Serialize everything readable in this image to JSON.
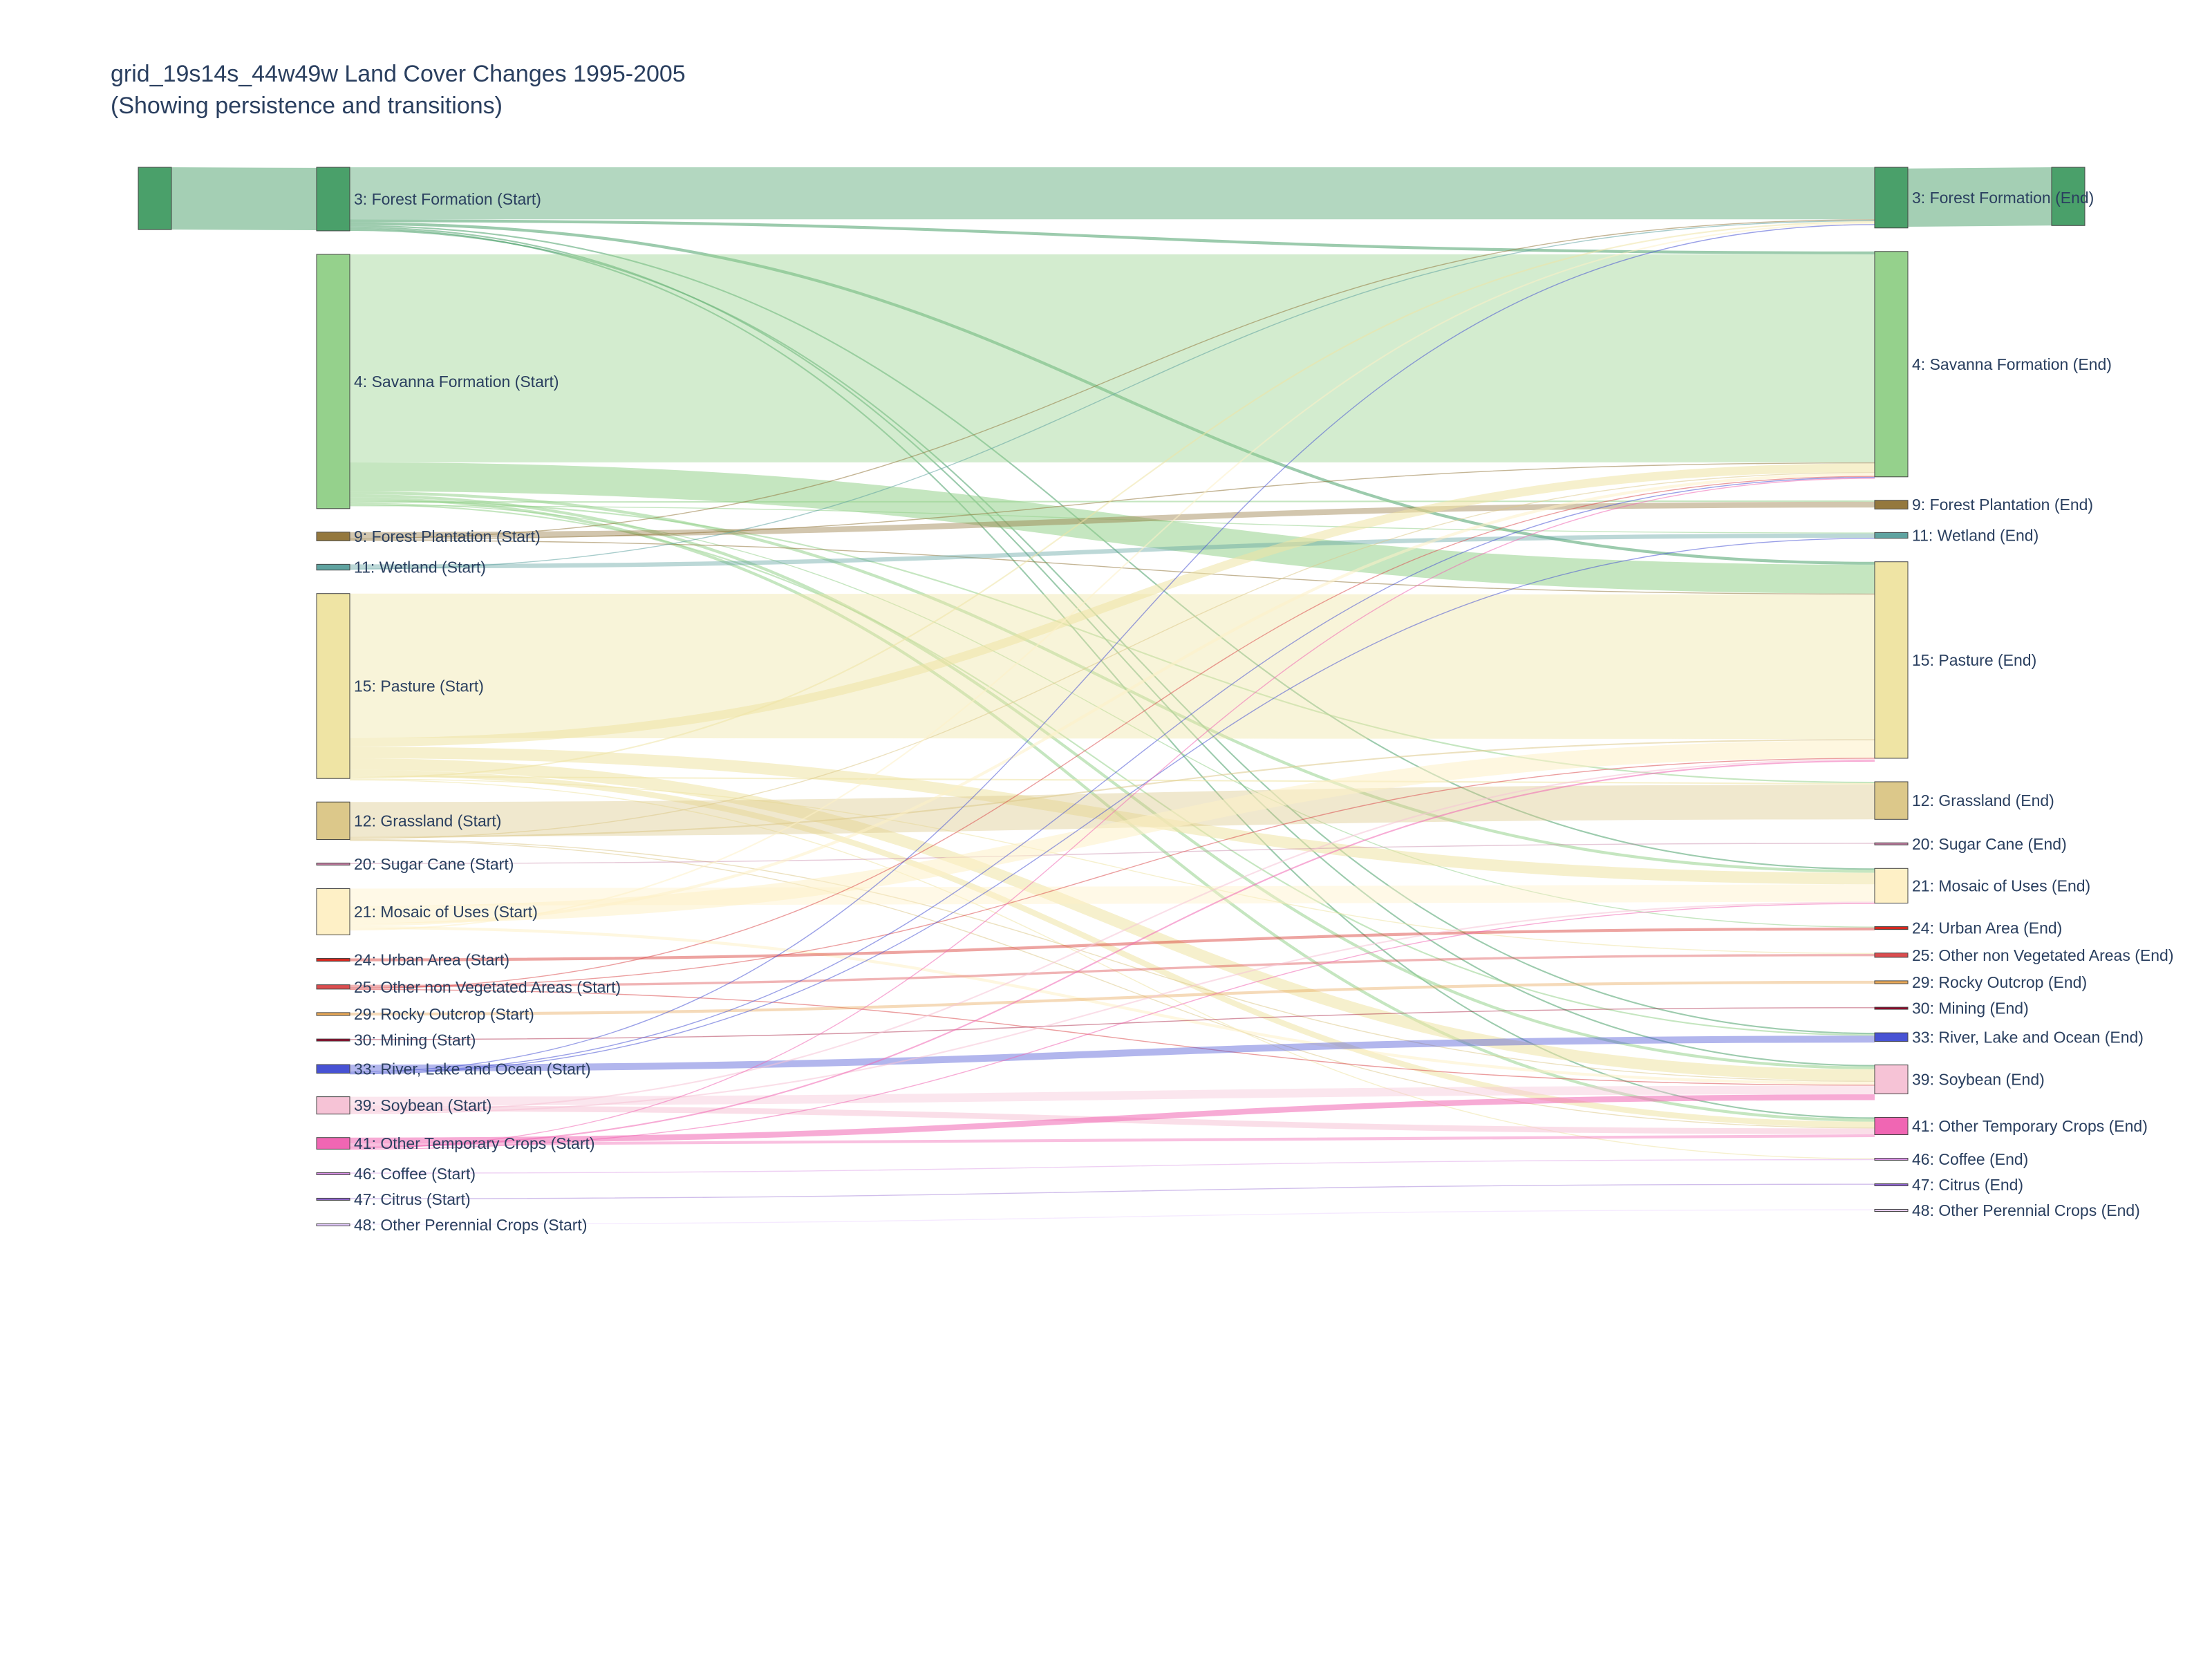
{
  "title": "grid_19s14s_44w49w Land Cover Changes 1995-2005",
  "subtitle": "(Showing persistence and transitions)",
  "chart_data": {
    "type": "sankey",
    "period": "1995-2005",
    "nodes": {
      "start": [
        {
          "id": "s3",
          "label": "3: Forest Formation (Start)",
          "color": "#4aa06a",
          "value": 22
        },
        {
          "id": "s4",
          "label": "4: Savanna Formation (Start)",
          "color": "#95d18c",
          "value": 88
        },
        {
          "id": "s9",
          "label": "9: Forest Plantation (Start)",
          "color": "#94783e",
          "value": 3
        },
        {
          "id": "s11",
          "label": "11: Wetland (Start)",
          "color": "#5fa3a0",
          "value": 2
        },
        {
          "id": "s15",
          "label": "15: Pasture (Start)",
          "color": "#efe4a4",
          "value": 64
        },
        {
          "id": "s12",
          "label": "12: Grassland (Start)",
          "color": "#dcc88a",
          "value": 13
        },
        {
          "id": "s20",
          "label": "20: Sugar Cane (Start)",
          "color": "#c27ba0",
          "value": 0.3
        },
        {
          "id": "s21",
          "label": "21: Mosaic of Uses (Start)",
          "color": "#fef0c6",
          "value": 16
        },
        {
          "id": "s24",
          "label": "24: Urban Area (Start)",
          "color": "#d4271e",
          "value": 1
        },
        {
          "id": "s25",
          "label": "25: Other non Vegetated Areas (Start)",
          "color": "#db4d4f",
          "value": 1.5
        },
        {
          "id": "s29",
          "label": "29: Rocky Outcrop (Start)",
          "color": "#e8a857",
          "value": 1
        },
        {
          "id": "s30",
          "label": "30: Mining (Start)",
          "color": "#9c0027",
          "value": 0.3
        },
        {
          "id": "s33",
          "label": "33: River, Lake and Ocean (Start)",
          "color": "#4752d4",
          "value": 3
        },
        {
          "id": "s39",
          "label": "39: Soybean (Start)",
          "color": "#f6c3d6",
          "value": 6
        },
        {
          "id": "s41",
          "label": "41: Other Temporary Crops (Start)",
          "color": "#f066b3",
          "value": 4
        },
        {
          "id": "s46",
          "label": "46: Coffee (Start)",
          "color": "#d68fe2",
          "value": 0.3
        },
        {
          "id": "s47",
          "label": "47: Citrus (Start)",
          "color": "#9065d0",
          "value": 0.3
        },
        {
          "id": "s48",
          "label": "48: Other Perennial Crops (Start)",
          "color": "#e6ccff",
          "value": 0.2
        }
      ],
      "end": [
        {
          "id": "e3",
          "label": "3: Forest Formation (End)",
          "color": "#4aa06a",
          "value": 21
        },
        {
          "id": "e4",
          "label": "4: Savanna Formation (End)",
          "color": "#95d18c",
          "value": 78
        },
        {
          "id": "e9",
          "label": "9: Forest Plantation (End)",
          "color": "#94783e",
          "value": 3
        },
        {
          "id": "e11",
          "label": "11: Wetland (End)",
          "color": "#5fa3a0",
          "value": 2
        },
        {
          "id": "e15",
          "label": "15: Pasture (End)",
          "color": "#efe4a4",
          "value": 68
        },
        {
          "id": "e12",
          "label": "12: Grassland (End)",
          "color": "#dcc88a",
          "value": 13
        },
        {
          "id": "e20",
          "label": "20: Sugar Cane (End)",
          "color": "#c27ba0",
          "value": 0.3
        },
        {
          "id": "e21",
          "label": "21: Mosaic of Uses (End)",
          "color": "#fef0c6",
          "value": 12
        },
        {
          "id": "e24",
          "label": "24: Urban Area (End)",
          "color": "#d4271e",
          "value": 1
        },
        {
          "id": "e25",
          "label": "25: Other non Vegetated Areas (End)",
          "color": "#db4d4f",
          "value": 1.5
        },
        {
          "id": "e29",
          "label": "29: Rocky Outcrop (End)",
          "color": "#e8a857",
          "value": 1
        },
        {
          "id": "e30",
          "label": "30: Mining (End)",
          "color": "#9c0027",
          "value": 0.3
        },
        {
          "id": "e33",
          "label": "33: River, Lake and Ocean (End)",
          "color": "#4752d4",
          "value": 3
        },
        {
          "id": "e39",
          "label": "39: Soybean (End)",
          "color": "#f6c3d6",
          "value": 10
        },
        {
          "id": "e41",
          "label": "41: Other Temporary Crops (End)",
          "color": "#f066b3",
          "value": 6
        },
        {
          "id": "e46",
          "label": "46: Coffee (End)",
          "color": "#d68fe2",
          "value": 0.3
        },
        {
          "id": "e47",
          "label": "47: Citrus (End)",
          "color": "#9065d0",
          "value": 0.3
        },
        {
          "id": "e48",
          "label": "48: Other Perennial Crops (End)",
          "color": "#e6ccff",
          "value": 0.2
        }
      ]
    },
    "links": [
      {
        "source": "s3",
        "target": "e3",
        "value": 18
      },
      {
        "source": "s3",
        "target": "e4",
        "value": 1
      },
      {
        "source": "s3",
        "target": "e15",
        "value": 1
      },
      {
        "source": "s3",
        "target": "e21",
        "value": 0.5
      },
      {
        "source": "s3",
        "target": "e39",
        "value": 0.5
      },
      {
        "source": "s3",
        "target": "e41",
        "value": 0.5
      },
      {
        "source": "s3",
        "target": "e33",
        "value": 0.5
      },
      {
        "source": "s4",
        "target": "e4",
        "value": 72
      },
      {
        "source": "s4",
        "target": "e15",
        "value": 10
      },
      {
        "source": "s4",
        "target": "e21",
        "value": 1
      },
      {
        "source": "s4",
        "target": "e39",
        "value": 1
      },
      {
        "source": "s4",
        "target": "e41",
        "value": 1
      },
      {
        "source": "s4",
        "target": "e12",
        "value": 0.5
      },
      {
        "source": "s4",
        "target": "e9",
        "value": 0.5
      },
      {
        "source": "s4",
        "target": "e24",
        "value": 0.3
      },
      {
        "source": "s4",
        "target": "e33",
        "value": 0.5
      },
      {
        "source": "s4",
        "target": "e11",
        "value": 0.3
      },
      {
        "source": "s9",
        "target": "e9",
        "value": 2
      },
      {
        "source": "s9",
        "target": "e3",
        "value": 0.3
      },
      {
        "source": "s9",
        "target": "e4",
        "value": 0.3
      },
      {
        "source": "s9",
        "target": "e15",
        "value": 0.3
      },
      {
        "source": "s11",
        "target": "e11",
        "value": 1.5
      },
      {
        "source": "s11",
        "target": "e3",
        "value": 0.3
      },
      {
        "source": "s15",
        "target": "e15",
        "value": 50
      },
      {
        "source": "s15",
        "target": "e4",
        "value": 3
      },
      {
        "source": "s15",
        "target": "e21",
        "value": 4
      },
      {
        "source": "s15",
        "target": "e39",
        "value": 4
      },
      {
        "source": "s15",
        "target": "e41",
        "value": 2
      },
      {
        "source": "s15",
        "target": "e12",
        "value": 0.5
      },
      {
        "source": "s15",
        "target": "e3",
        "value": 0.5
      },
      {
        "source": "s15",
        "target": "e25",
        "value": 0.3
      },
      {
        "source": "s15",
        "target": "e46",
        "value": 0.3
      },
      {
        "source": "s12",
        "target": "e12",
        "value": 12
      },
      {
        "source": "s12",
        "target": "e15",
        "value": 0.5
      },
      {
        "source": "s12",
        "target": "e4",
        "value": 0.3
      },
      {
        "source": "s12",
        "target": "e39",
        "value": 0.3
      },
      {
        "source": "s12",
        "target": "e41",
        "value": 0.3
      },
      {
        "source": "s20",
        "target": "e20",
        "value": 0.3
      },
      {
        "source": "s21",
        "target": "e21",
        "value": 6
      },
      {
        "source": "s21",
        "target": "e15",
        "value": 6
      },
      {
        "source": "s21",
        "target": "e4",
        "value": 1
      },
      {
        "source": "s21",
        "target": "e39",
        "value": 1
      },
      {
        "source": "s21",
        "target": "e3",
        "value": 0.5
      },
      {
        "source": "s24",
        "target": "e24",
        "value": 1
      },
      {
        "source": "s25",
        "target": "e25",
        "value": 0.8
      },
      {
        "source": "s25",
        "target": "e15",
        "value": 0.3
      },
      {
        "source": "s25",
        "target": "e4",
        "value": 0.2
      },
      {
        "source": "s25",
        "target": "e39",
        "value": 0.2
      },
      {
        "source": "s29",
        "target": "e29",
        "value": 1
      },
      {
        "source": "s30",
        "target": "e30",
        "value": 0.3
      },
      {
        "source": "s33",
        "target": "e33",
        "value": 2.4
      },
      {
        "source": "s33",
        "target": "e3",
        "value": 0.2
      },
      {
        "source": "s33",
        "target": "e4",
        "value": 0.2
      },
      {
        "source": "s33",
        "target": "e11",
        "value": 0.2
      },
      {
        "source": "s39",
        "target": "e39",
        "value": 3
      },
      {
        "source": "s39",
        "target": "e41",
        "value": 2
      },
      {
        "source": "s39",
        "target": "e15",
        "value": 0.5
      },
      {
        "source": "s39",
        "target": "e21",
        "value": 0.5
      },
      {
        "source": "s41",
        "target": "e39",
        "value": 2
      },
      {
        "source": "s41",
        "target": "e41",
        "value": 1
      },
      {
        "source": "s41",
        "target": "e15",
        "value": 0.5
      },
      {
        "source": "s41",
        "target": "e4",
        "value": 0.2
      },
      {
        "source": "s41",
        "target": "e21",
        "value": 0.3
      },
      {
        "source": "s46",
        "target": "e46",
        "value": 0.3
      },
      {
        "source": "s47",
        "target": "e47",
        "value": 0.3
      },
      {
        "source": "s48",
        "target": "e48",
        "value": 0.2
      }
    ]
  }
}
